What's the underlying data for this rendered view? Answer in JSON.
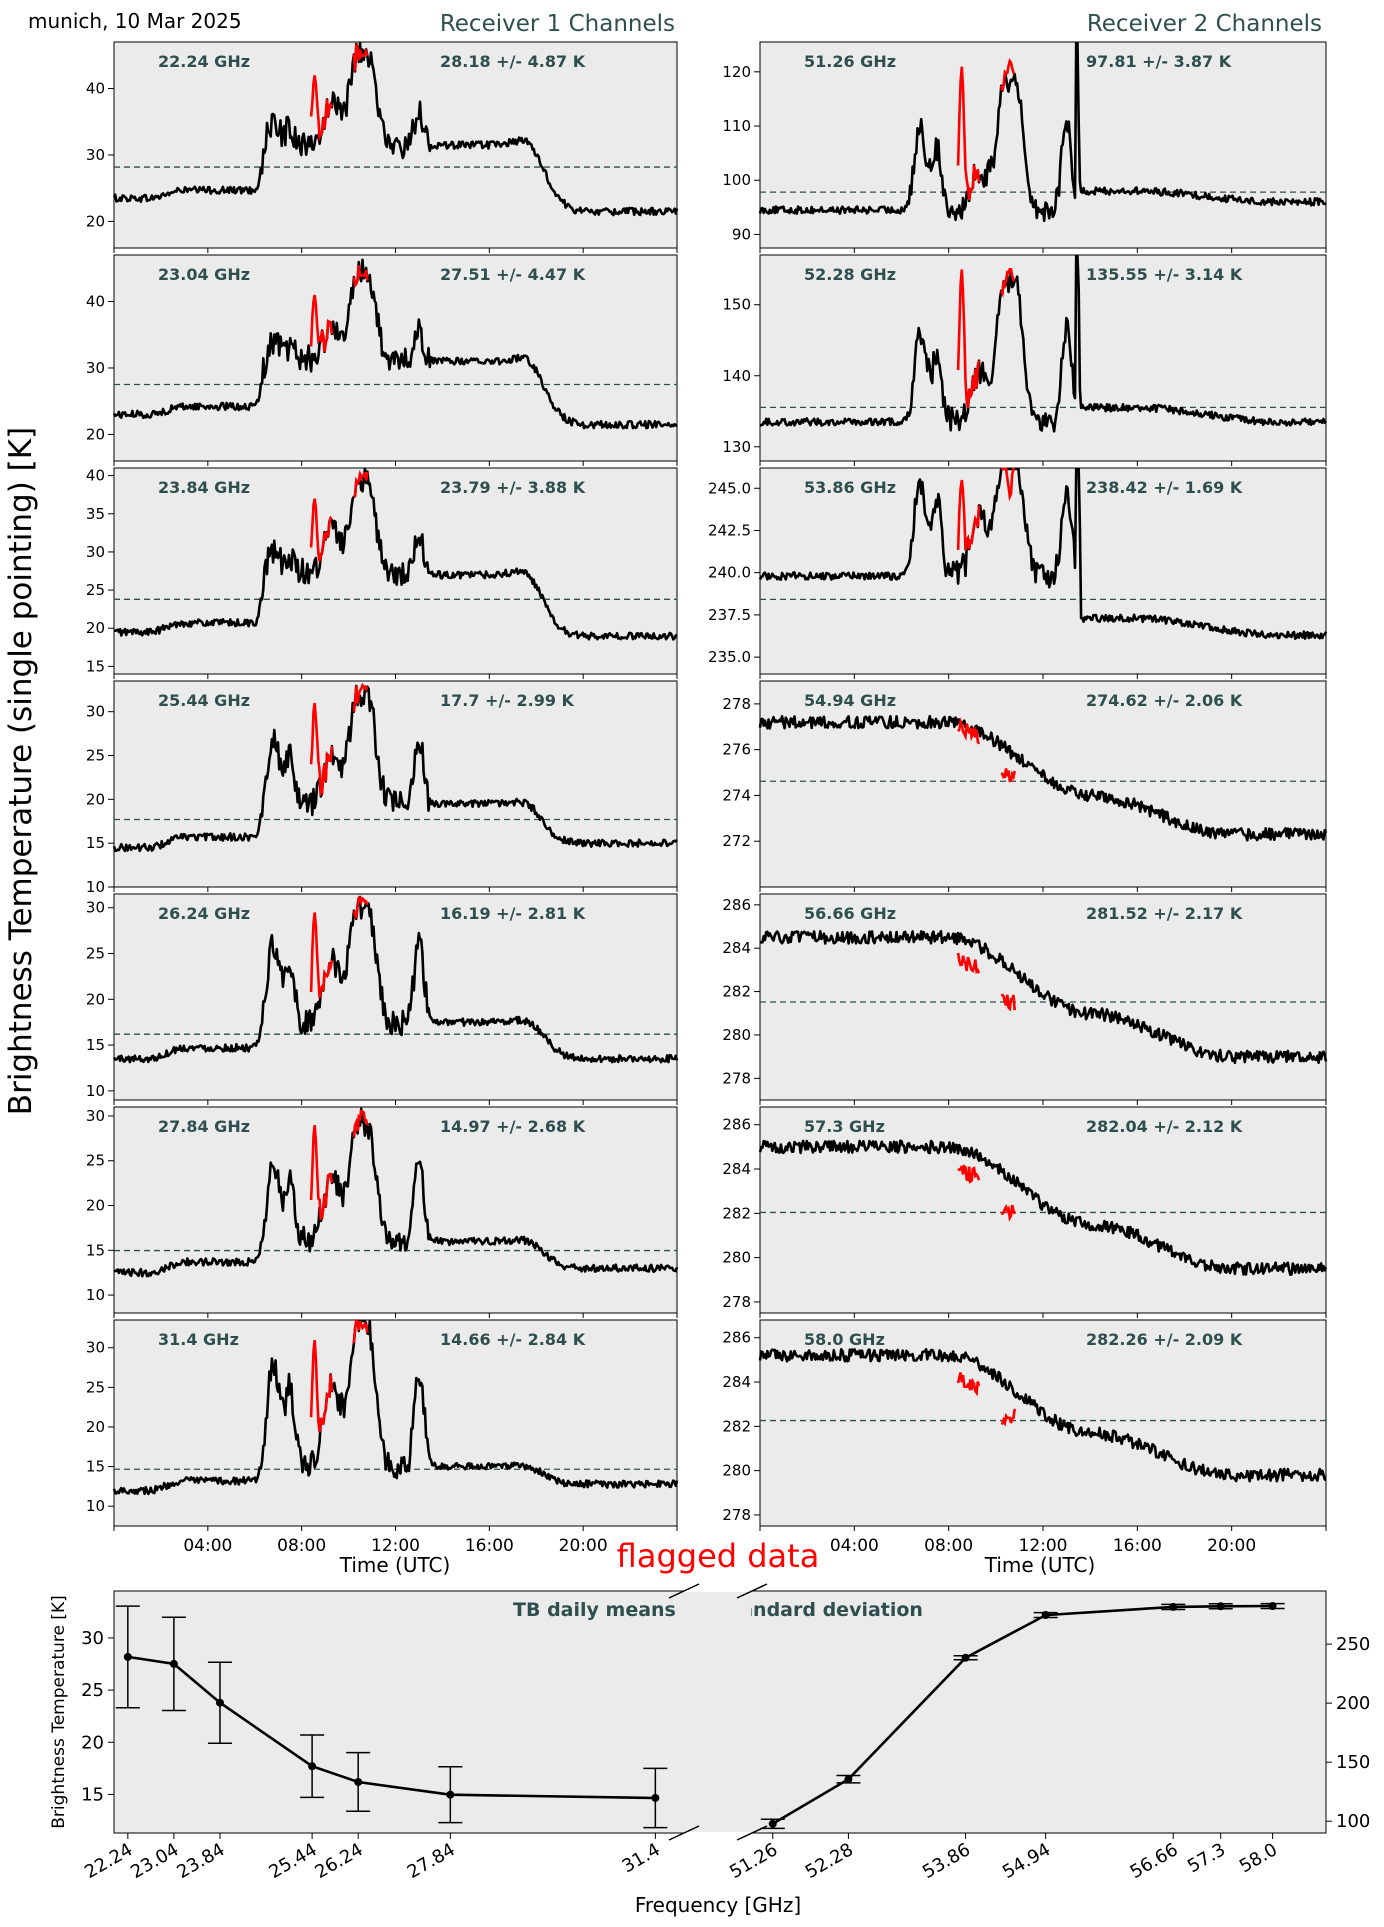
{
  "header": {
    "location_date": "munich, 10 Mar 2025",
    "receiver1_title": "Receiver 1 Channels",
    "receiver2_title": "Receiver 2 Channels",
    "ylabel": "Brightness Temperature (single pointing) [K]",
    "xlabel_left": "Time (UTC)",
    "xlabel_right": "Time (UTC)",
    "flag_legend": "flagged data"
  },
  "colors": {
    "panel_bg": "#ebebeb",
    "trace": "#000000",
    "flagged": "#ff0000",
    "mean_line": "#2f4f4f",
    "title_text": "#2f4f4f"
  },
  "time_ticks": [
    "04:00",
    "08:00",
    "12:00",
    "16:00",
    "20:00"
  ],
  "chart_data": [
    {
      "type": "line",
      "receiver": 1,
      "channels": [
        {
          "freq_label": "22.24 GHz",
          "stats_label": "28.18 +/- 4.87 K",
          "mean": 28.18,
          "ylim": [
            16,
            47
          ],
          "yticks": [
            "20",
            "30",
            "40"
          ],
          "profile": {
            "base": 23.5,
            "mid": 31.5,
            "late": 21.5,
            "p1": 34.5,
            "p2": 37.5,
            "p3": 43,
            "p4": 36.5,
            "flag1": 42,
            "flag2": 45
          }
        },
        {
          "freq_label": "23.04 GHz",
          "stats_label": "27.51 +/- 4.47 K",
          "mean": 27.51,
          "ylim": [
            16,
            47
          ],
          "yticks": [
            "20",
            "30",
            "40"
          ],
          "profile": {
            "base": 23,
            "mid": 31,
            "late": 21.5,
            "p1": 34,
            "p2": 36.5,
            "p3": 42,
            "p4": 35.5,
            "flag1": 41,
            "flag2": 44
          }
        },
        {
          "freq_label": "23.84 GHz",
          "stats_label": "23.79 +/- 3.88 K",
          "mean": 23.79,
          "ylim": [
            14,
            41
          ],
          "yticks": [
            "15",
            "20",
            "25",
            "30",
            "35",
            "40"
          ],
          "profile": {
            "base": 19.5,
            "mid": 27,
            "late": 19,
            "p1": 30,
            "p2": 33,
            "p3": 37,
            "p4": 32,
            "flag1": 37,
            "flag2": 40
          }
        },
        {
          "freq_label": "25.44 GHz",
          "stats_label": "17.7 +/- 2.99 K",
          "mean": 17.7,
          "ylim": [
            10,
            33.5
          ],
          "yticks": [
            "10",
            "15",
            "20",
            "25",
            "30"
          ],
          "profile": {
            "base": 14.5,
            "mid": 19.5,
            "late": 15,
            "p1": 27,
            "p2": 25,
            "p3": 30,
            "p4": 27,
            "flag1": 31,
            "flag2": 33
          }
        },
        {
          "freq_label": "26.24 GHz",
          "stats_label": "16.19 +/- 2.81 K",
          "mean": 16.19,
          "ylim": [
            9,
            31.5
          ],
          "yticks": [
            "10",
            "15",
            "20",
            "25",
            "30"
          ],
          "profile": {
            "base": 13.5,
            "mid": 17.5,
            "late": 13.5,
            "p1": 26,
            "p2": 24,
            "p3": 28,
            "p4": 26,
            "flag1": 29.5,
            "flag2": 31
          }
        },
        {
          "freq_label": "27.84 GHz",
          "stats_label": "14.97 +/- 2.68 K",
          "mean": 14.97,
          "ylim": [
            8,
            31
          ],
          "yticks": [
            "10",
            "15",
            "20",
            "25",
            "30"
          ],
          "profile": {
            "base": 12.5,
            "mid": 16,
            "late": 13,
            "p1": 25,
            "p2": 23,
            "p3": 27,
            "p4": 25,
            "flag1": 29,
            "flag2": 30.5
          }
        },
        {
          "freq_label": "31.4 GHz",
          "stats_label": "14.66 +/- 2.84 K",
          "mean": 14.66,
          "ylim": [
            7.5,
            33.5
          ],
          "yticks": [
            "10",
            "15",
            "20",
            "25",
            "30"
          ],
          "profile": {
            "base": 12,
            "mid": 15,
            "late": 12.8,
            "p1": 28,
            "p2": 25,
            "p3": 30,
            "p4": 27,
            "flag1": 31,
            "flag2": 32.5
          }
        }
      ]
    },
    {
      "type": "line",
      "receiver": 2,
      "channels": [
        {
          "freq_label": "51.26 GHz",
          "stats_label": "97.81 +/- 3.87 K",
          "mean": 97.81,
          "ylim": [
            87.5,
            125.5
          ],
          "yticks": [
            "90",
            "100",
            "110",
            "120"
          ],
          "profile": {
            "base": 94.5,
            "mid": 98,
            "late": 96,
            "p1": 113,
            "p2": 105,
            "p3": 118,
            "p4": 115,
            "flag1": 121,
            "flag2": 122
          }
        },
        {
          "freq_label": "52.28 GHz",
          "stats_label": "135.55 +/- 3.14 K",
          "mean": 135.55,
          "ylim": [
            128,
            157
          ],
          "yticks": [
            "130",
            "140",
            "150"
          ],
          "profile": {
            "base": 133.5,
            "mid": 135.5,
            "late": 133.5,
            "p1": 148,
            "p2": 142,
            "p3": 152,
            "p4": 149,
            "flag1": 155,
            "flag2": 155
          }
        },
        {
          "freq_label": "53.86 GHz",
          "stats_label": "238.42 +/- 1.69 K",
          "mean": 238.42,
          "ylim": [
            234,
            246.2
          ],
          "yticks": [
            "235.0",
            "237.5",
            "240.0",
            "242.5",
            "245.0"
          ],
          "profile": {
            "base": 239.8,
            "mid": 237.3,
            "late": 236.3,
            "p1": 243,
            "p2": 241,
            "p3": 243.5,
            "p4": 242.5,
            "flag1": 245.5,
            "flag2": 244.5
          }
        },
        {
          "freq_label": "54.94 GHz",
          "stats_label": "274.62 +/- 2.06 K",
          "mean": 274.62,
          "ylim": [
            270,
            279
          ],
          "yticks": [
            "272",
            "274",
            "276",
            "278"
          ],
          "profile": {
            "base": 277.2,
            "mid": 274,
            "late": 272.3,
            "flag1": 277,
            "flag2": 275
          }
        },
        {
          "freq_label": "56.66 GHz",
          "stats_label": "281.52 +/- 2.17 K",
          "mean": 281.52,
          "ylim": [
            277,
            286.5
          ],
          "yticks": [
            "278",
            "280",
            "282",
            "284",
            "286"
          ],
          "profile": {
            "base": 284.5,
            "mid": 281,
            "late": 279,
            "flag1": 283.5,
            "flag2": 281.5
          }
        },
        {
          "freq_label": "57.3 GHz",
          "stats_label": "282.04 +/- 2.12 K",
          "mean": 282.04,
          "ylim": [
            277.5,
            286.8
          ],
          "yticks": [
            "278",
            "280",
            "282",
            "284",
            "286"
          ],
          "profile": {
            "base": 285,
            "mid": 281.5,
            "late": 279.5,
            "flag1": 284,
            "flag2": 282
          }
        },
        {
          "freq_label": "58.0 GHz",
          "stats_label": "282.26 +/- 2.09 K",
          "mean": 282.26,
          "ylim": [
            277.5,
            286.8
          ],
          "yticks": [
            "278",
            "280",
            "282",
            "284",
            "286"
          ],
          "profile": {
            "base": 285.2,
            "mid": 281.7,
            "late": 279.8,
            "flag1": 284.2,
            "flag2": 282.5
          }
        }
      ]
    },
    {
      "type": "line",
      "title": "TB daily means +/- standard deviation",
      "xlabel": "Frequency [GHz]",
      "ylabel": "Brightness Temperature [K]",
      "left": {
        "x": [
          22.24,
          23.04,
          23.84,
          25.44,
          26.24,
          27.84,
          31.4
        ],
        "x_labels": [
          "22.24",
          "23.04",
          "23.84",
          "25.44",
          "26.24",
          "27.84",
          "31.4"
        ],
        "y": [
          28.18,
          27.51,
          23.79,
          17.7,
          16.19,
          14.97,
          14.66
        ],
        "err": [
          4.87,
          4.47,
          3.88,
          2.99,
          2.81,
          2.68,
          2.84
        ],
        "ylim": [
          11.3,
          34.5
        ],
        "yticks": [
          "15",
          "20",
          "25",
          "30"
        ]
      },
      "right": {
        "x": [
          51.26,
          52.28,
          53.86,
          54.94,
          56.66,
          57.3,
          58.0
        ],
        "x_labels": [
          "51.26",
          "52.28",
          "53.86",
          "54.94",
          "56.66",
          "57.3",
          "58.0"
        ],
        "y": [
          97.81,
          135.55,
          238.42,
          274.62,
          281.52,
          282.04,
          282.26
        ],
        "err": [
          3.87,
          3.14,
          1.69,
          2.06,
          2.17,
          2.12,
          2.09
        ],
        "ylim": [
          90,
          295
        ],
        "yticks": [
          "100",
          "150",
          "200",
          "250"
        ]
      }
    }
  ]
}
